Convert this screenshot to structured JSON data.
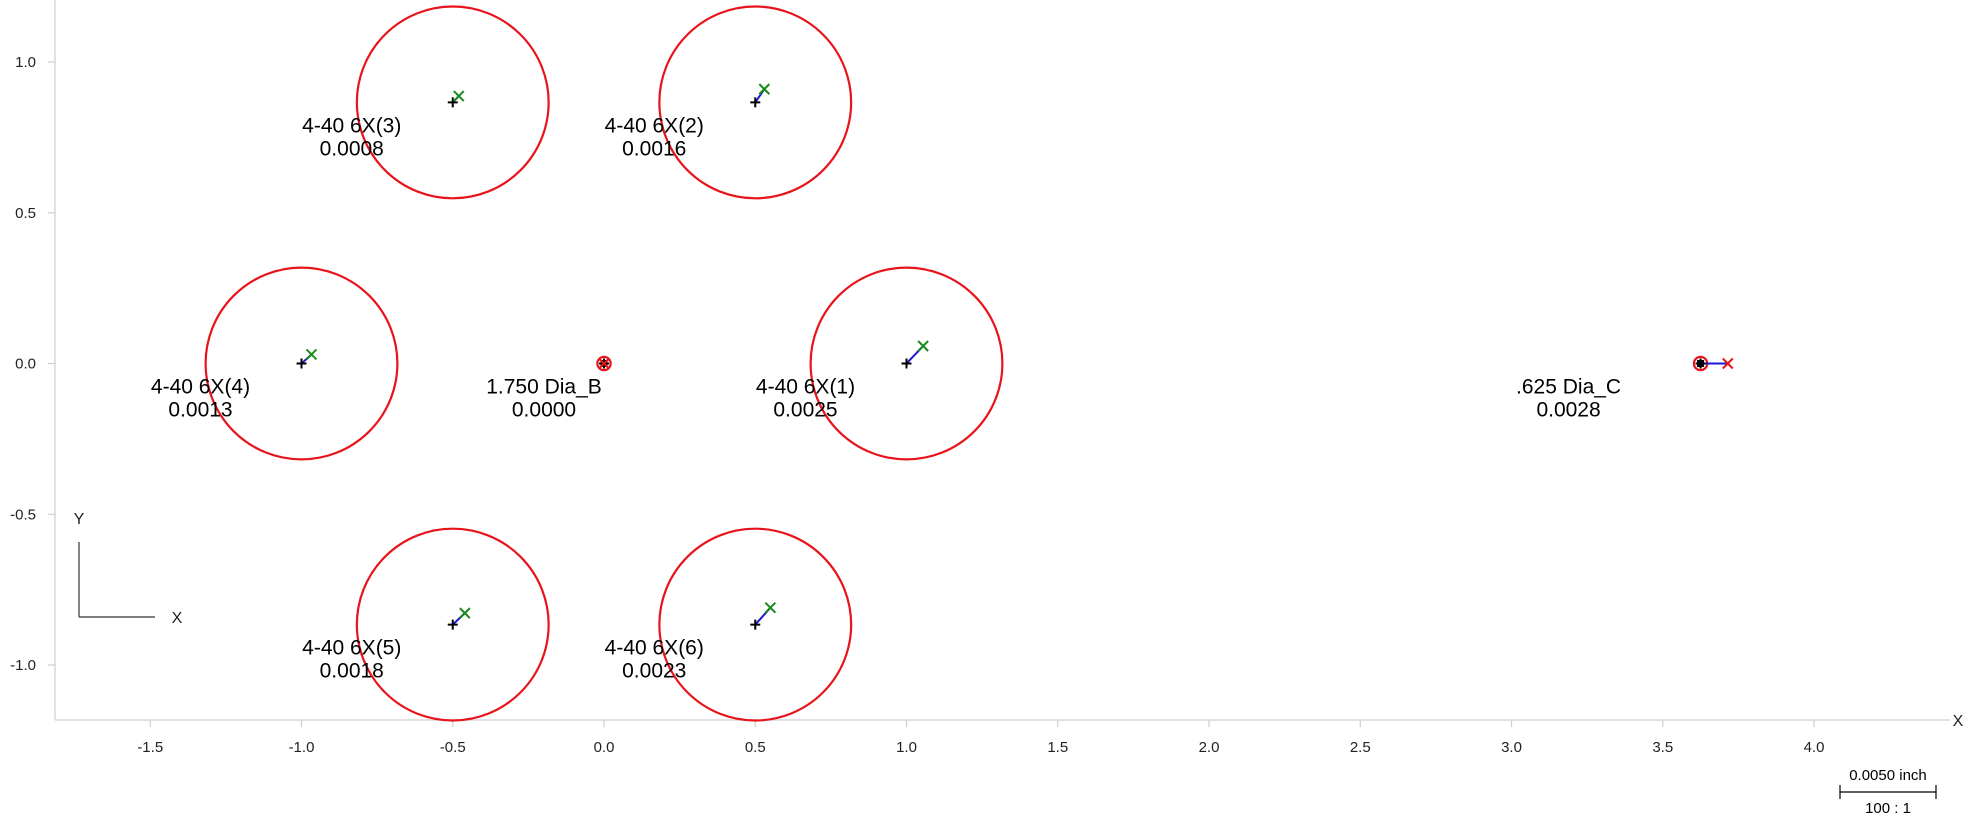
{
  "chart_data": {
    "type": "scatter",
    "xlabel": "X",
    "ylabel": "",
    "xlim": [
      -1.82,
      4.45
    ],
    "ylim": [
      -1.18,
      1.19
    ],
    "x_ticks": [
      -1.5,
      -1.0,
      -0.5,
      0.0,
      0.5,
      1.0,
      1.5,
      2.0,
      2.5,
      3.0,
      3.5,
      4.0
    ],
    "x_tick_labels": [
      "-1.5",
      "-1.0",
      "-0.5",
      "0.0",
      "0.5",
      "1.0",
      "1.5",
      "2.0",
      "2.5",
      "3.0",
      "3.5",
      "4.0"
    ],
    "y_ticks": [
      1.0,
      0.5,
      0.0,
      -0.5,
      -1.0
    ],
    "y_tick_labels": [
      "1.0",
      "0.5",
      "0.0",
      "-0.5",
      "-1.0"
    ],
    "grid": false,
    "colors": {
      "nominal_circle": "#e8141c",
      "deviation_line": "#1a1ad0",
      "measured_mark": "#1a8a1a",
      "nominal_mark": "#000000"
    },
    "features": [
      {
        "name": "4-40 6X(3)",
        "value": "0.0008",
        "x": -0.5,
        "y": 0.866,
        "radius": 0.317,
        "mx": -0.48,
        "my": 0.887
      },
      {
        "name": "4-40 6X(2)",
        "value": "0.0016",
        "x": 0.5,
        "y": 0.866,
        "radius": 0.317,
        "mx": 0.53,
        "my": 0.91
      },
      {
        "name": "4-40 6X(4)",
        "value": "0.0013",
        "x": -1.0,
        "y": 0.0,
        "radius": 0.317,
        "mx": -0.967,
        "my": 0.03
      },
      {
        "name": "1.750 Dia_B",
        "value": "0.0000",
        "x": 0.0,
        "y": 0.0,
        "radius": 0.022,
        "mx": 0.0,
        "my": 0.0
      },
      {
        "name": "4-40 6X(1)",
        "value": "0.0025",
        "x": 1.0,
        "y": 0.0,
        "radius": 0.317,
        "mx": 1.055,
        "my": 0.058
      },
      {
        "name": ".625 Dia_C",
        "value": "0.0028",
        "x": 3.625,
        "y": 0.0,
        "radius": 0.022,
        "mx": 3.715,
        "my": 0.0
      },
      {
        "name": "4-40 6X(5)",
        "value": "0.0018",
        "x": -0.5,
        "y": -0.866,
        "radius": 0.317,
        "mx": -0.46,
        "my": -0.828
      },
      {
        "name": "4-40 6X(6)",
        "value": "0.0023",
        "x": 0.5,
        "y": -0.866,
        "radius": 0.317,
        "mx": 0.55,
        "my": -0.81
      }
    ],
    "orientation": {
      "x_label": "X",
      "y_label": "Y"
    },
    "scale_bar": {
      "length_label": "0.0050 inch",
      "ratio_label": "100 : 1"
    }
  }
}
